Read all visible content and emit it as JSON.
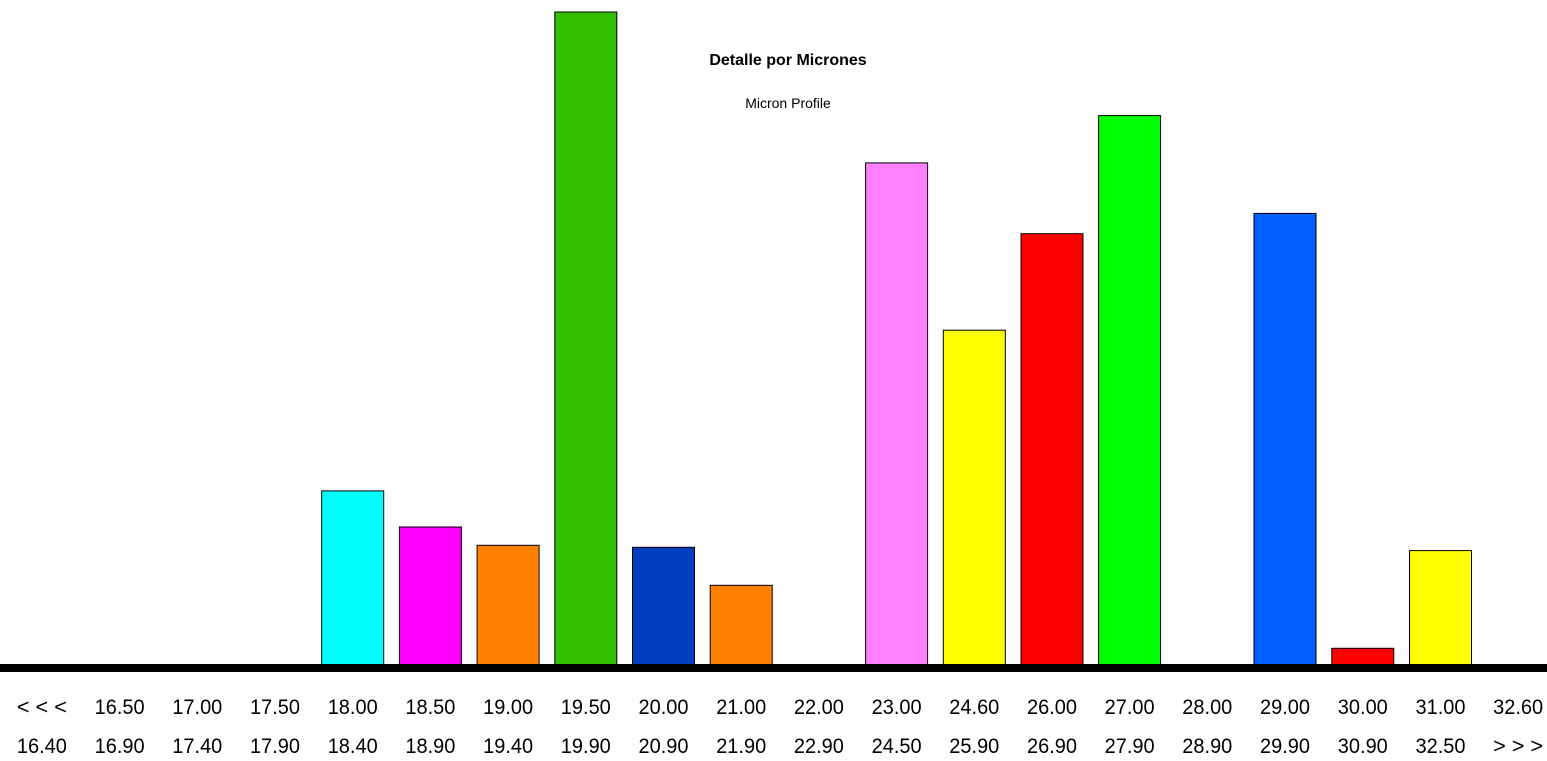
{
  "chart_data": {
    "type": "bar",
    "title": "Detalle por Micrones",
    "subtitle": "Micron Profile",
    "xlabel": "",
    "ylabel": "",
    "top_labels": [
      "< < <",
      "16.50",
      "17.00",
      "17.50",
      "18.00",
      "18.50",
      "19.00",
      "19.50",
      "20.00",
      "21.00",
      "22.00",
      "23.00",
      "24.60",
      "26.00",
      "27.00",
      "28.00",
      "29.00",
      "30.00",
      "31.00",
      "32.60"
    ],
    "bottom_labels": [
      "16.40",
      "16.90",
      "17.40",
      "17.90",
      "18.40",
      "18.90",
      "19.40",
      "19.90",
      "20.90",
      "21.90",
      "22.90",
      "24.50",
      "25.90",
      "26.90",
      "27.90",
      "28.90",
      "29.90",
      "30.90",
      "32.50",
      "> > >"
    ],
    "values": [
      0,
      0,
      0,
      0,
      27,
      21.5,
      18.7,
      100,
      18.4,
      12.6,
      0,
      77,
      51.5,
      66.2,
      84.2,
      0,
      69.3,
      3,
      17.9,
      0
    ],
    "colors": [
      "#00ffff",
      "#00ffff",
      "#00ffff",
      "#00ffff",
      "#00ffff",
      "#ff00ff",
      "#ff8000",
      "#30c000",
      "#0040c0",
      "#ff8000",
      "#ff8080",
      "#ff80ff",
      "#ffff00",
      "#ff0000",
      "#00ff00",
      "#0060ff",
      "#0060ff",
      "#ff0000",
      "#ffff00",
      "#ffff00"
    ],
    "ylim": [
      0,
      100
    ],
    "grid": false,
    "legend": "none"
  }
}
